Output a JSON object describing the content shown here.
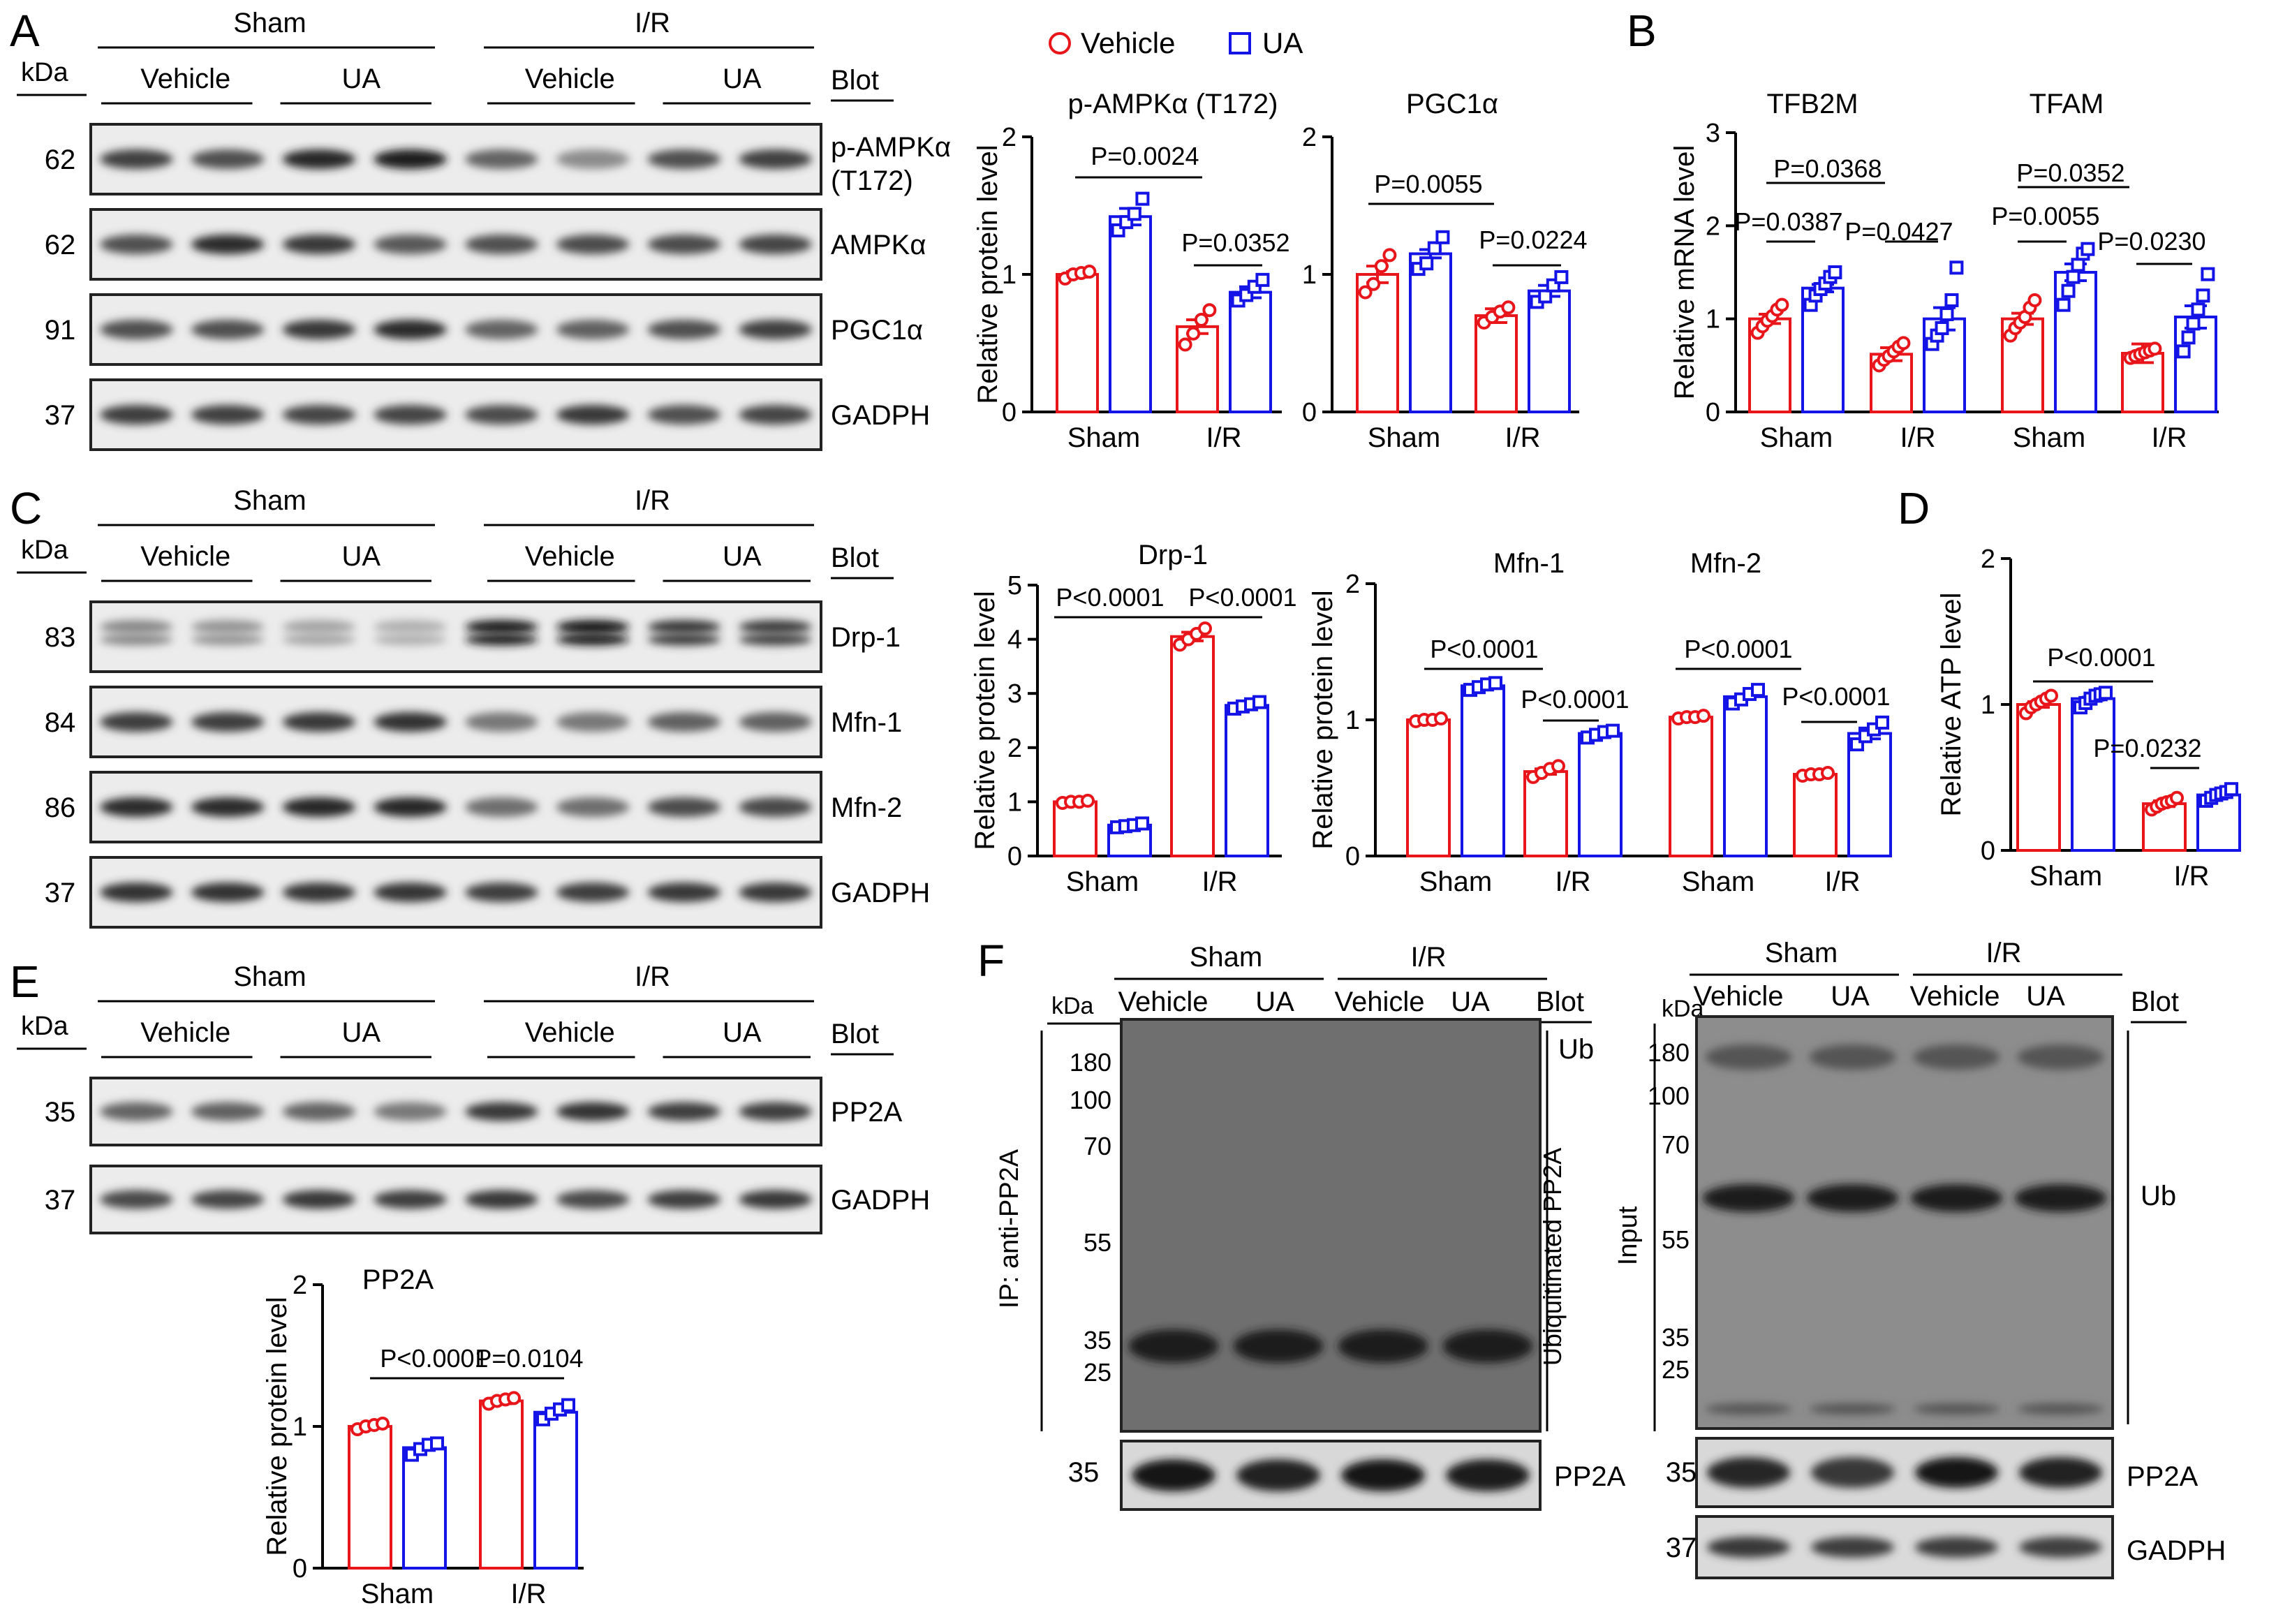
{
  "panels": {
    "A": "A",
    "B": "B",
    "C": "C",
    "D": "D",
    "E": "E",
    "F": "F"
  },
  "labels": {
    "kda": "kDa",
    "blot": "Blot",
    "sham": "Sham",
    "ir": "I/R",
    "vehicle": "Vehicle",
    "ua": "UA",
    "ylabel_protein": "Relative protein level",
    "ylabel_mrna": "Relative mRNA level",
    "ylabel_atp": "Relative ATP level"
  },
  "legend": {
    "vehicle": "Vehicle",
    "ua": "UA"
  },
  "colors": {
    "vehicle": "#e8151b",
    "ua": "#1414e6"
  },
  "blots": {
    "A": [
      {
        "kda": "62",
        "name": "p-AMPKα",
        "name2": "(T172)"
      },
      {
        "kda": "62",
        "name": "AMPKα"
      },
      {
        "kda": "91",
        "name": "PGC1α"
      },
      {
        "kda": "37",
        "name": "GADPH"
      }
    ],
    "C": [
      {
        "kda": "83",
        "name": "Drp-1"
      },
      {
        "kda": "84",
        "name": "Mfn-1"
      },
      {
        "kda": "86",
        "name": "Mfn-2"
      },
      {
        "kda": "37",
        "name": "GADPH"
      }
    ],
    "E": [
      {
        "kda": "35",
        "name": "PP2A"
      },
      {
        "kda": "37",
        "name": "GADPH"
      }
    ]
  },
  "panelF": {
    "ip": {
      "side_label": "IP: anti-PP2A",
      "ub_label": "Ub",
      "ub_bracket": "Ubiquitinated PP2A",
      "markers": [
        "180",
        "100",
        "70",
        "55",
        "35",
        "25"
      ],
      "lower": {
        "kda": "35",
        "name": "PP2A"
      }
    },
    "input": {
      "side_label": "Input",
      "ub_label": "Ub",
      "markers": [
        "180",
        "100",
        "70",
        "55",
        "35",
        "25"
      ],
      "lower": [
        {
          "kda": "35",
          "name": "PP2A"
        },
        {
          "kda": "37",
          "name": "GADPH"
        }
      ]
    }
  },
  "chart_data": [
    {
      "id": "pampk",
      "type": "bar",
      "title": "p-AMPKα (T172)",
      "ylabel": "Relative protein level",
      "ylim": [
        0,
        2
      ],
      "yticks": [
        0,
        1,
        2
      ],
      "categories": [
        "Sham",
        "I/R"
      ],
      "series": [
        {
          "name": "Vehicle",
          "values": [
            1.0,
            0.62
          ]
        },
        {
          "name": "UA",
          "values": [
            1.42,
            0.87
          ]
        }
      ],
      "points": [
        [
          [
            0.97,
            1.0,
            1.01,
            1.02
          ],
          [
            1.32,
            1.38,
            1.44,
            1.55
          ]
        ],
        [
          [
            0.49,
            0.57,
            0.67,
            0.74
          ],
          [
            0.81,
            0.85,
            0.91,
            0.96
          ]
        ]
      ],
      "errors": [
        [
          0.02,
          0.05
        ],
        [
          0.06,
          0.04
        ]
      ],
      "annotations": [
        {
          "text": "P=0.0024"
        },
        {
          "text": "P=0.0352"
        }
      ]
    },
    {
      "id": "pgc",
      "type": "bar",
      "title": "PGC1α",
      "ylabel": "",
      "ylim": [
        0,
        2
      ],
      "yticks": [
        0,
        1,
        2
      ],
      "categories": [
        "Sham",
        "I/R"
      ],
      "series": [
        {
          "name": "Vehicle",
          "values": [
            1.0,
            0.7
          ]
        },
        {
          "name": "UA",
          "values": [
            1.15,
            0.88
          ]
        }
      ],
      "points": [
        [
          [
            0.87,
            0.93,
            1.06,
            1.14
          ],
          [
            1.04,
            1.08,
            1.19,
            1.27
          ]
        ],
        [
          [
            0.65,
            0.69,
            0.73,
            0.76
          ],
          [
            0.8,
            0.84,
            0.92,
            0.98
          ]
        ]
      ],
      "errors": [
        [
          0.06,
          0.05
        ],
        [
          0.03,
          0.04
        ]
      ],
      "annotations": [
        {
          "text": "P=0.0055"
        },
        {
          "text": "P=0.0224"
        }
      ]
    },
    {
      "id": "mrna",
      "type": "bar",
      "title": "",
      "ylabel": "Relative mRNA level",
      "ylim": [
        0,
        3
      ],
      "yticks": [
        0,
        1,
        2,
        3
      ],
      "categories": [
        "Sham",
        "I/R",
        "Sham",
        "I/R"
      ],
      "subtitles": [
        "TFB2M",
        "TFAM"
      ],
      "series": [
        {
          "name": "Vehicle",
          "values": [
            1.0,
            0.62,
            1.0,
            0.63
          ]
        },
        {
          "name": "UA",
          "values": [
            1.33,
            1.0,
            1.5,
            1.02
          ]
        }
      ],
      "points": [
        [
          [
            0.85,
            0.92,
            0.98,
            1.03,
            1.1,
            1.15
          ],
          [
            1.15,
            1.25,
            1.32,
            1.38,
            1.45,
            1.5
          ]
        ],
        [
          [
            0.5,
            0.56,
            0.6,
            0.65,
            0.7,
            0.74
          ],
          [
            0.73,
            0.82,
            0.9,
            1.05,
            1.2,
            1.55
          ]
        ],
        [
          [
            0.82,
            0.9,
            0.96,
            1.02,
            1.12,
            1.2
          ],
          [
            1.15,
            1.3,
            1.45,
            1.58,
            1.7,
            1.75
          ]
        ],
        [
          [
            0.58,
            0.6,
            0.62,
            0.64,
            0.66,
            0.68
          ],
          [
            0.65,
            0.8,
            0.95,
            1.1,
            1.25,
            1.48
          ]
        ]
      ],
      "errors": [
        [
          0.05,
          0.07,
          0.06,
          0.1
        ],
        [
          0.04,
          0.12,
          0.09,
          0.12
        ]
      ],
      "annotations": [
        {
          "text": "P=0.0368"
        },
        {
          "text": "P=0.0387"
        },
        {
          "text": "P=0.0427"
        },
        {
          "text": "P=0.0352"
        },
        {
          "text": "P=0.0055"
        },
        {
          "text": "P=0.0230"
        }
      ]
    },
    {
      "id": "drp",
      "type": "bar",
      "title": "Drp-1",
      "ylabel": "Relative protein level",
      "ylim": [
        0,
        5
      ],
      "yticks": [
        0,
        1,
        2,
        3,
        4,
        5
      ],
      "categories": [
        "Sham",
        "I/R"
      ],
      "series": [
        {
          "name": "Vehicle",
          "values": [
            1.0,
            4.05
          ]
        },
        {
          "name": "UA",
          "values": [
            0.57,
            2.78
          ]
        }
      ],
      "points": [
        [
          [
            0.98,
            1.0,
            1.0,
            1.02
          ],
          [
            0.53,
            0.55,
            0.57,
            0.6
          ]
        ],
        [
          [
            3.9,
            4.0,
            4.1,
            4.2
          ],
          [
            2.72,
            2.76,
            2.8,
            2.84
          ]
        ]
      ],
      "errors": [
        [
          0.01,
          0.08
        ],
        [
          0.02,
          0.03
        ]
      ],
      "annotations": [
        {
          "text": "P<0.0001"
        },
        {
          "text": "P<0.0001"
        }
      ]
    },
    {
      "id": "mfn",
      "type": "bar",
      "title": "",
      "ylabel": "Relative protein level",
      "ylim": [
        0,
        2
      ],
      "yticks": [
        0,
        1,
        2
      ],
      "categories": [
        "Sham",
        "I/R",
        "Sham",
        "I/R"
      ],
      "subtitles": [
        "Mfn-1",
        "Mfn-2"
      ],
      "series": [
        {
          "name": "Vehicle",
          "values": [
            1.0,
            0.62,
            1.02,
            0.6
          ]
        },
        {
          "name": "UA",
          "values": [
            1.25,
            0.9,
            1.17,
            0.9
          ]
        }
      ],
      "points": [
        [
          [
            0.99,
            1.0,
            1.0,
            1.01
          ],
          [
            1.22,
            1.24,
            1.26,
            1.27
          ]
        ],
        [
          [
            0.58,
            0.61,
            0.64,
            0.66
          ],
          [
            0.87,
            0.89,
            0.91,
            0.92
          ]
        ],
        [
          [
            1.01,
            1.02,
            1.02,
            1.03
          ],
          [
            1.12,
            1.15,
            1.19,
            1.22
          ]
        ],
        [
          [
            0.59,
            0.6,
            0.6,
            0.61
          ],
          [
            0.82,
            0.88,
            0.93,
            0.98
          ]
        ]
      ],
      "errors": [
        [
          0.01,
          0.02,
          0.01,
          0.01
        ],
        [
          0.02,
          0.01,
          0.02,
          0.04
        ]
      ],
      "annotations": [
        {
          "text": "P<0.0001"
        },
        {
          "text": "P<0.0001"
        },
        {
          "text": "P<0.0001"
        },
        {
          "text": "P<0.0001"
        }
      ]
    },
    {
      "id": "atp",
      "type": "bar",
      "title": "",
      "ylabel": "Relative ATP level",
      "ylim": [
        0,
        2
      ],
      "yticks": [
        0,
        1,
        2
      ],
      "categories": [
        "Sham",
        "I/R"
      ],
      "series": [
        {
          "name": "Vehicle",
          "values": [
            1.0,
            0.32
          ]
        },
        {
          "name": "UA",
          "values": [
            1.04,
            0.38
          ]
        }
      ],
      "points": [
        [
          [
            0.94,
            0.98,
            1.0,
            1.02,
            1.04,
            1.06
          ],
          [
            0.98,
            1.01,
            1.04,
            1.06,
            1.07,
            1.08
          ]
        ],
        [
          [
            0.28,
            0.3,
            0.32,
            0.33,
            0.34,
            0.36
          ],
          [
            0.34,
            0.36,
            0.38,
            0.39,
            0.4,
            0.42
          ]
        ]
      ],
      "errors": [
        [
          0.02,
          0.02
        ],
        [
          0.01,
          0.01
        ]
      ],
      "annotations": [
        {
          "text": "P<0.0001"
        },
        {
          "text": "P=0.0232"
        }
      ]
    },
    {
      "id": "pp2a",
      "type": "bar",
      "title": "PP2A",
      "ylabel": "Relative protein level",
      "ylim": [
        0,
        2
      ],
      "yticks": [
        0,
        1,
        2
      ],
      "categories": [
        "Sham",
        "I/R"
      ],
      "series": [
        {
          "name": "Vehicle",
          "values": [
            1.0,
            1.18
          ]
        },
        {
          "name": "UA",
          "values": [
            0.85,
            1.1
          ]
        }
      ],
      "points": [
        [
          [
            0.98,
            1.0,
            1.01,
            1.02
          ],
          [
            0.8,
            0.84,
            0.87,
            0.88
          ]
        ],
        [
          [
            1.16,
            1.18,
            1.19,
            1.2
          ],
          [
            1.05,
            1.09,
            1.12,
            1.15
          ]
        ]
      ],
      "errors": [
        [
          0.01,
          0.02
        ],
        [
          0.01,
          0.02
        ]
      ],
      "annotations": [
        {
          "text": "P<0.0001"
        },
        {
          "text": "P=0.0104"
        }
      ]
    }
  ]
}
